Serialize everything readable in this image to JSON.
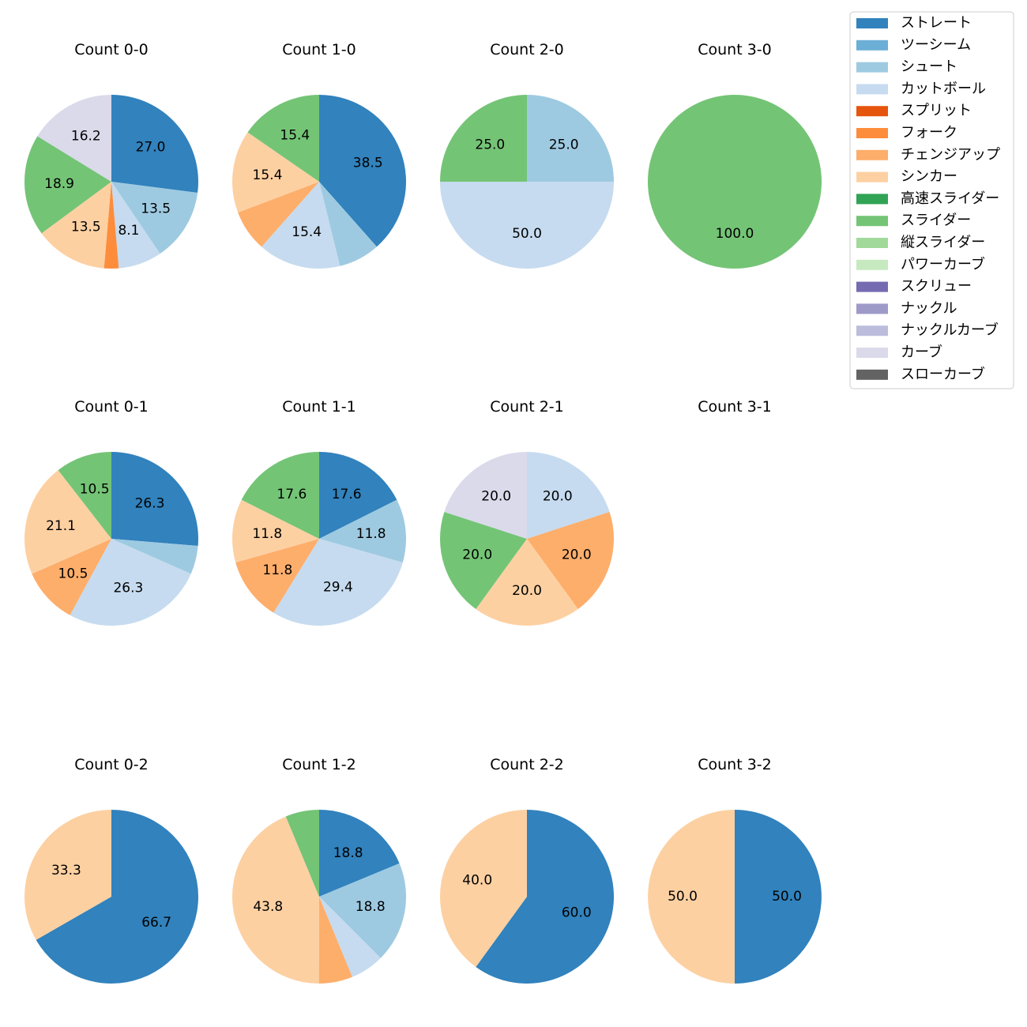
{
  "chart_data": {
    "type": "pie",
    "categories": [
      "ストレート",
      "ツーシーム",
      "シュート",
      "カットボール",
      "スプリット",
      "フォーク",
      "チェンジアップ",
      "シンカー",
      "高速スライダー",
      "スライダー",
      "縦スライダー",
      "パワーカーブ",
      "スクリュー",
      "ナックル",
      "ナックルカーブ",
      "カーブ",
      "スローカーブ"
    ],
    "colors": [
      "#3182bd",
      "#6baed6",
      "#9ecae1",
      "#c6dbef",
      "#e6550d",
      "#fd8d3c",
      "#fdae6b",
      "#fdd0a2",
      "#31a354",
      "#74c476",
      "#a1d99b",
      "#c7e9c0",
      "#756bb1",
      "#9e9ac8",
      "#bcbddc",
      "#dadaeb",
      "#636363"
    ],
    "legend": {
      "location": "top-right"
    },
    "charts": [
      {
        "title": "Count 0-0",
        "values": [
          27.0,
          0,
          13.5,
          8.1,
          0,
          2.7,
          0,
          13.5,
          0,
          18.9,
          0,
          0,
          0,
          0,
          0,
          16.2,
          0
        ],
        "labels": [
          "27.0",
          "",
          "13.5",
          "8.1",
          "",
          "",
          "",
          "13.5",
          "",
          "18.9",
          "",
          "",
          "",
          "",
          "",
          "16.2",
          ""
        ]
      },
      {
        "title": "Count 1-0",
        "values": [
          38.5,
          0,
          7.7,
          15.4,
          0,
          0,
          7.7,
          15.4,
          0,
          15.4,
          0,
          0,
          0,
          0,
          0,
          0,
          0
        ],
        "labels": [
          "38.5",
          "",
          "",
          "15.4",
          "",
          "",
          "",
          "15.4",
          "",
          "15.4",
          "",
          "",
          "",
          "",
          "",
          "",
          ""
        ]
      },
      {
        "title": "Count 2-0",
        "values": [
          0,
          0,
          25.0,
          50.0,
          0,
          0,
          0,
          0,
          0,
          25.0,
          0,
          0,
          0,
          0,
          0,
          0,
          0
        ],
        "labels": [
          "",
          "",
          "25.0",
          "50.0",
          "",
          "",
          "",
          "",
          "",
          "25.0",
          "",
          "",
          "",
          "",
          "",
          "",
          ""
        ]
      },
      {
        "title": "Count 3-0",
        "values": [
          0,
          0,
          0,
          0,
          0,
          0,
          0,
          0,
          0,
          100.0,
          0,
          0,
          0,
          0,
          0,
          0,
          0
        ],
        "labels": [
          "",
          "",
          "",
          "",
          "",
          "",
          "",
          "",
          "",
          "100.0",
          "",
          "",
          "",
          "",
          "",
          "",
          ""
        ]
      },
      {
        "title": "Count 0-1",
        "values": [
          26.3,
          0,
          5.3,
          26.3,
          0,
          0,
          10.5,
          21.1,
          0,
          10.5,
          0,
          0,
          0,
          0,
          0,
          0,
          0
        ],
        "labels": [
          "26.3",
          "",
          "",
          "26.3",
          "",
          "",
          "10.5",
          "21.1",
          "",
          "10.5",
          "",
          "",
          "",
          "",
          "",
          "",
          ""
        ]
      },
      {
        "title": "Count 1-1",
        "values": [
          17.6,
          0,
          11.8,
          29.4,
          0,
          0,
          11.8,
          11.8,
          0,
          17.6,
          0,
          0,
          0,
          0,
          0,
          0,
          0
        ],
        "labels": [
          "17.6",
          "",
          "11.8",
          "29.4",
          "",
          "",
          "11.8",
          "11.8",
          "",
          "17.6",
          "",
          "",
          "",
          "",
          "",
          "",
          ""
        ]
      },
      {
        "title": "Count 2-1",
        "values": [
          0,
          0,
          0,
          20.0,
          0,
          0,
          20.0,
          20.0,
          0,
          20.0,
          0,
          0,
          0,
          0,
          0,
          20.0,
          0
        ],
        "labels": [
          "",
          "",
          "",
          "20.0",
          "",
          "",
          "20.0",
          "20.0",
          "",
          "20.0",
          "",
          "",
          "",
          "",
          "",
          "20.0",
          ""
        ]
      },
      {
        "title": "Count 3-1",
        "values": [],
        "labels": []
      },
      {
        "title": "Count 0-2",
        "values": [
          66.7,
          0,
          0,
          0,
          0,
          0,
          0,
          33.3,
          0,
          0,
          0,
          0,
          0,
          0,
          0,
          0,
          0
        ],
        "labels": [
          "66.7",
          "",
          "",
          "",
          "",
          "",
          "",
          "33.3",
          "",
          "",
          "",
          "",
          "",
          "",
          "",
          "",
          ""
        ]
      },
      {
        "title": "Count 1-2",
        "values": [
          18.8,
          0,
          18.8,
          6.3,
          0,
          0,
          6.3,
          43.8,
          0,
          6.3,
          0,
          0,
          0,
          0,
          0,
          0,
          0
        ],
        "labels": [
          "18.8",
          "",
          "18.8",
          "",
          "",
          "",
          "",
          "43.8",
          "",
          "",
          "",
          "",
          "",
          "",
          "",
          "",
          ""
        ]
      },
      {
        "title": "Count 2-2",
        "values": [
          60.0,
          0,
          0,
          0,
          0,
          0,
          0,
          40.0,
          0,
          0,
          0,
          0,
          0,
          0,
          0,
          0,
          0
        ],
        "labels": [
          "60.0",
          "",
          "",
          "",
          "",
          "",
          "",
          "40.0",
          "",
          "",
          "",
          "",
          "",
          "",
          "",
          "",
          ""
        ]
      },
      {
        "title": "Count 3-2",
        "values": [
          50.0,
          0,
          0,
          0,
          0,
          0,
          0,
          50.0,
          0,
          0,
          0,
          0,
          0,
          0,
          0,
          0,
          0
        ],
        "labels": [
          "50.0",
          "",
          "",
          "",
          "",
          "",
          "",
          "50.0",
          "",
          "",
          "",
          "",
          "",
          "",
          "",
          "",
          ""
        ]
      }
    ]
  }
}
